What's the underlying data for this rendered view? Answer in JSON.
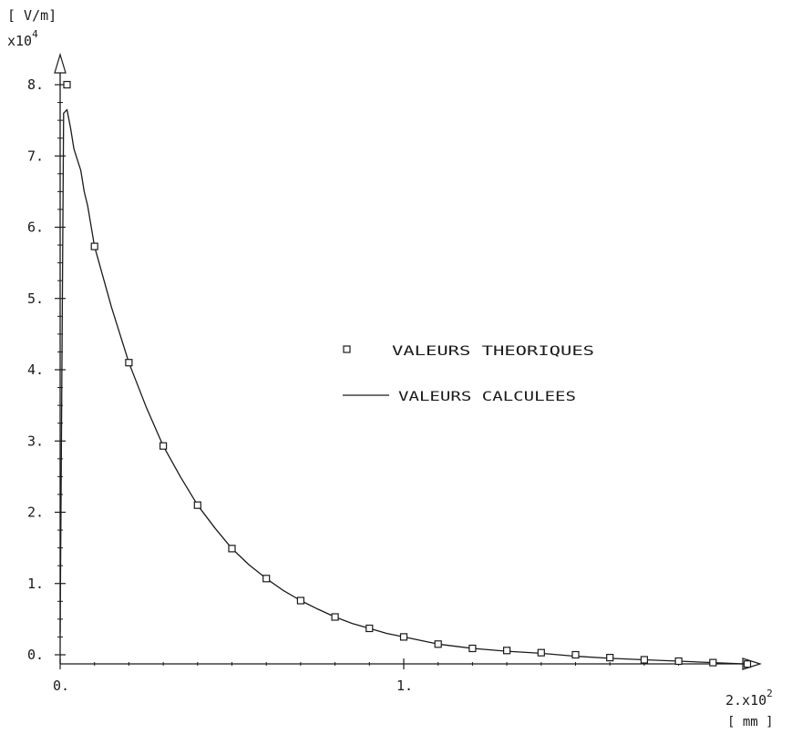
{
  "chart_data": {
    "type": "line",
    "title": "",
    "ylabel": "[ V/m]",
    "y_multiplier": "x10",
    "y_multiplier_exp": "4",
    "xlabel": "[ mm ]",
    "x_multiplier": "2.x10",
    "x_multiplier_exp": "2",
    "xlim": [
      0,
      2
    ],
    "ylim": [
      0,
      8
    ],
    "x_ticks": [
      {
        "value": 0,
        "label": "0."
      },
      {
        "value": 1,
        "label": "1."
      }
    ],
    "y_ticks": [
      {
        "value": 0,
        "label": "0."
      },
      {
        "value": 1,
        "label": "1."
      },
      {
        "value": 2,
        "label": "2."
      },
      {
        "value": 3,
        "label": "3."
      },
      {
        "value": 4,
        "label": "4."
      },
      {
        "value": 5,
        "label": "5."
      },
      {
        "value": 6,
        "label": "6."
      },
      {
        "value": 7,
        "label": "7."
      },
      {
        "value": 8,
        "label": "8."
      }
    ],
    "grid": false,
    "legend_position": "center-right",
    "series": [
      {
        "name": "VALEURS THEORIQUES",
        "style": "markers",
        "marker": "square",
        "x": [
          0.02,
          0.1,
          0.2,
          0.3,
          0.4,
          0.5,
          0.6,
          0.7,
          0.8,
          0.9,
          1.0,
          1.1,
          1.2,
          1.3,
          1.4,
          1.5,
          1.6,
          1.7,
          1.8,
          1.9,
          2.0
        ],
        "y": [
          8.0,
          5.73,
          4.1,
          2.93,
          2.1,
          1.49,
          1.07,
          0.76,
          0.53,
          0.37,
          0.25,
          0.15,
          0.09,
          0.06,
          0.03,
          0.0,
          -0.04,
          -0.07,
          -0.09,
          -0.11,
          -0.13
        ]
      },
      {
        "name": "VALEURS CALCULEES",
        "style": "line",
        "x": [
          0.0,
          0.01,
          0.02,
          0.03,
          0.04,
          0.05,
          0.06,
          0.07,
          0.08,
          0.1,
          0.15,
          0.2,
          0.25,
          0.3,
          0.35,
          0.4,
          0.45,
          0.5,
          0.55,
          0.6,
          0.65,
          0.7,
          0.75,
          0.8,
          0.85,
          0.9,
          0.95,
          1.0,
          1.1,
          1.2,
          1.3,
          1.4,
          1.5,
          1.6,
          1.7,
          1.8,
          1.9,
          2.0
        ],
        "y": [
          0.3,
          7.6,
          7.65,
          7.4,
          7.1,
          6.95,
          6.8,
          6.5,
          6.3,
          5.73,
          4.87,
          4.1,
          3.48,
          2.93,
          2.5,
          2.1,
          1.78,
          1.49,
          1.26,
          1.07,
          0.9,
          0.76,
          0.64,
          0.53,
          0.44,
          0.37,
          0.3,
          0.25,
          0.15,
          0.09,
          0.05,
          0.02,
          -0.02,
          -0.05,
          -0.07,
          -0.09,
          -0.11,
          -0.13
        ]
      }
    ]
  },
  "colors": {
    "ink": "#1a1a1a",
    "background": "#ffffff"
  }
}
